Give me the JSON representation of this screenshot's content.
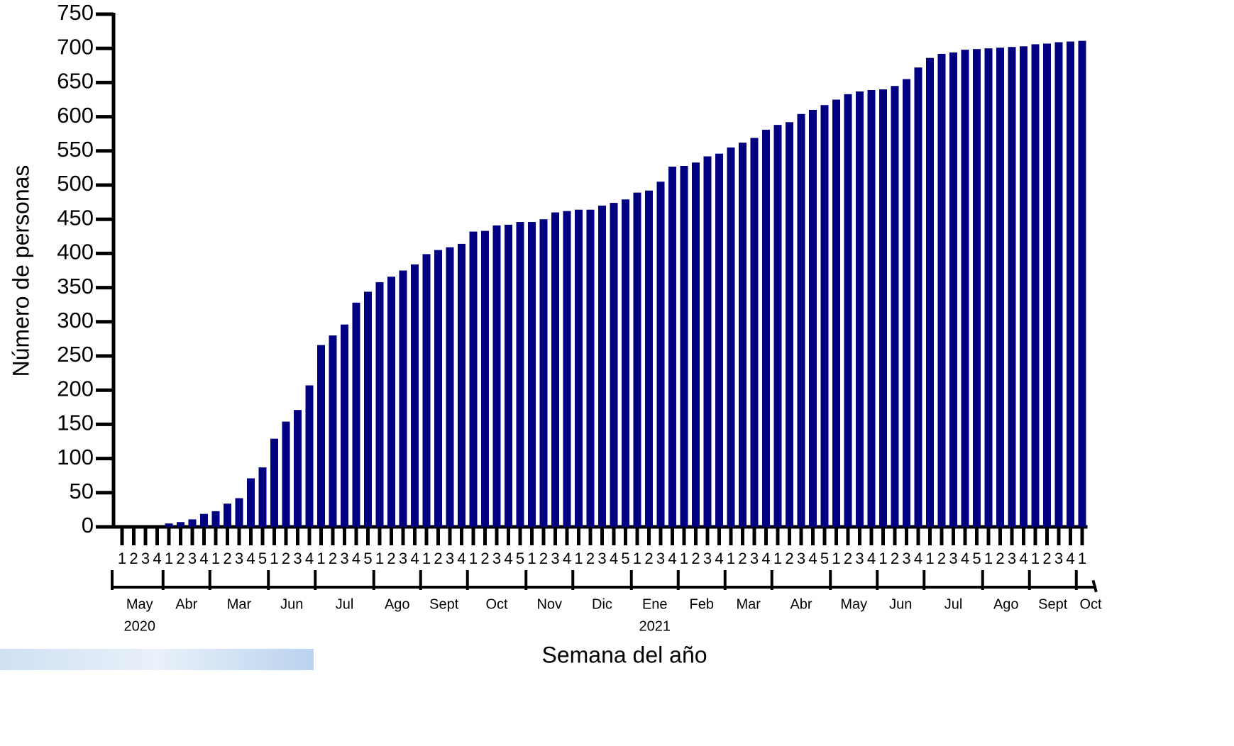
{
  "chart_data": {
    "type": "bar",
    "x_label": "Semana del año",
    "y_label": "Número de personas",
    "color": "#000080",
    "grid": false,
    "ylim": [
      0,
      750
    ],
    "yticks": [
      0,
      50,
      100,
      150,
      200,
      250,
      300,
      350,
      400,
      450,
      500,
      550,
      600,
      650,
      700,
      750
    ],
    "categories": [
      "1",
      "2",
      "3",
      "4",
      "1",
      "2",
      "3",
      "4",
      "1",
      "2",
      "3",
      "4",
      "5",
      "1",
      "2",
      "3",
      "4",
      "1",
      "2",
      "3",
      "4",
      "5",
      "1",
      "2",
      "3",
      "4",
      "1",
      "2",
      "3",
      "4",
      "1",
      "2",
      "3",
      "4",
      "5",
      "1",
      "2",
      "3",
      "4",
      "1",
      "2",
      "3",
      "4",
      "5",
      "1",
      "2",
      "3",
      "4",
      "1",
      "2",
      "3",
      "4",
      "1",
      "2",
      "3",
      "4",
      "1",
      "2",
      "3",
      "4",
      "5",
      "1",
      "2",
      "3",
      "4",
      "1",
      "2",
      "3",
      "4",
      "1",
      "2",
      "3",
      "4",
      "5",
      "1",
      "2",
      "3",
      "4",
      "1",
      "2",
      "3",
      "4",
      "1"
    ],
    "groups": [
      {
        "label": "May",
        "year": "2020"
      },
      {
        "label": "Abr"
      },
      {
        "label": "Mar"
      },
      {
        "label": "Jun"
      },
      {
        "label": "Jul"
      },
      {
        "label": "Ago"
      },
      {
        "label": "Sept"
      },
      {
        "label": "Oct"
      },
      {
        "label": "Nov"
      },
      {
        "label": "Dic"
      },
      {
        "label": "Ene",
        "year": "2021"
      },
      {
        "label": "Feb"
      },
      {
        "label": "Mar"
      },
      {
        "label": "Abr"
      },
      {
        "label": "May"
      },
      {
        "label": "Jun"
      },
      {
        "label": "Jul"
      },
      {
        "label": "Ago"
      },
      {
        "label": "Sept"
      },
      {
        "label": "Oct"
      }
    ],
    "values": [
      0,
      0,
      0,
      0,
      5,
      7,
      11,
      19,
      23,
      34,
      42,
      71,
      87,
      129,
      154,
      171,
      207,
      266,
      280,
      296,
      328,
      344,
      358,
      366,
      375,
      384,
      399,
      405,
      409,
      414,
      432,
      433,
      441,
      442,
      446,
      446,
      450,
      460,
      462,
      464,
      464,
      470,
      474,
      479,
      489,
      492,
      505,
      527,
      528,
      533,
      542,
      546,
      555,
      562,
      569,
      581,
      588,
      592,
      604,
      610,
      617,
      625,
      633,
      637,
      639,
      640,
      645,
      655,
      672,
      686,
      692,
      694,
      698,
      699,
      700,
      701,
      702,
      703,
      706,
      707,
      709,
      710,
      711
    ]
  }
}
